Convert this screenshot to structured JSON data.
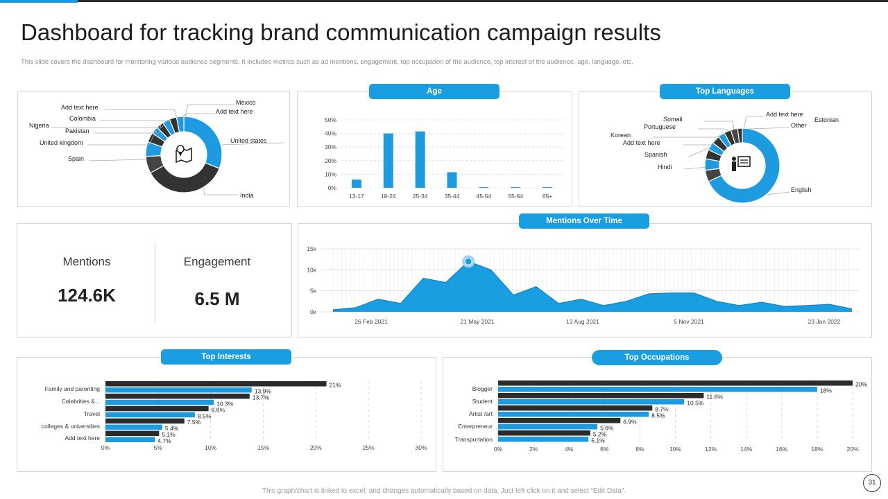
{
  "header": {
    "title": "Dashboard for tracking brand communication campaign results",
    "subtitle": "This slide covers the dashboard for monitoring various audience segments. It includes metrics such as ad mentions, engagement, top occupation of the audience, top interest of the audience, age, language, etc."
  },
  "colors": {
    "accent": "#1e9be0",
    "dark": "#333333",
    "panel_border": "#d4d4d4"
  },
  "location_chart": {
    "type": "pie",
    "icon": "map-pin-icon",
    "labels": [
      "Mexico",
      "Add text here",
      "Add text here",
      "Colombia",
      "Nigeria",
      "Pakistan",
      "United kingdom",
      "Spain",
      "United states",
      "India"
    ],
    "slices": [
      {
        "label": "United states",
        "value": 30
      },
      {
        "label": "India",
        "value": 35
      },
      {
        "label": "Spain",
        "value": 7
      },
      {
        "label": "United kingdom",
        "value": 6
      },
      {
        "label": "Pakistan",
        "value": 4
      },
      {
        "label": "Nigeria",
        "value": 3
      },
      {
        "label": "Colombia",
        "value": 3
      },
      {
        "label": "Add text here",
        "value": 3
      },
      {
        "label": "Add text here",
        "value": 3
      },
      {
        "label": "Mexico",
        "value": 3
      }
    ]
  },
  "age_chart": {
    "title": "Age",
    "type": "bar",
    "categories": [
      "13-17",
      "18-24",
      "25-34",
      "35-44",
      "45-54",
      "55-64",
      "65+"
    ],
    "values": [
      6,
      40,
      41.5,
      11.5,
      0.5,
      0.5,
      0.5
    ],
    "y_ticks": [
      "0%",
      "10%",
      "20%",
      "30%",
      "40%",
      "50%"
    ],
    "ylim": [
      0,
      50
    ]
  },
  "languages_chart": {
    "title": "Top Languages",
    "type": "pie",
    "icon": "presentation-icon",
    "labels": [
      "Add text here",
      "Estonian",
      "Other",
      "Somali",
      "Portuguese",
      "Korean",
      "Add text here",
      "Spanish",
      "Hindi",
      "English"
    ],
    "slices": [
      {
        "label": "English",
        "value": 68
      },
      {
        "label": "Hindi",
        "value": 5
      },
      {
        "label": "Spanish",
        "value": 5
      },
      {
        "label": "Add text here",
        "value": 4
      },
      {
        "label": "Korean",
        "value": 3.5
      },
      {
        "label": "Portuguese",
        "value": 3.5
      },
      {
        "label": "Somali",
        "value": 3
      },
      {
        "label": "Other",
        "value": 3
      },
      {
        "label": "Estonian",
        "value": 3
      },
      {
        "label": "Add text here",
        "value": 2
      }
    ]
  },
  "kpis": {
    "mentions_label": "Mentions",
    "mentions_value": "124.6K",
    "engagement_label": "Engagement",
    "engagement_value": "6.5 M"
  },
  "mentions_chart": {
    "title": "Mentions Over Time",
    "type": "area",
    "y_ticks": [
      "0k",
      "5k",
      "10k",
      "15k"
    ],
    "ylim": [
      0,
      15000
    ],
    "x_ticks": [
      "26 Feb 2021",
      "21 May 2021",
      "13 Aug 2021",
      "5 Nov 2021",
      "23 Jan 2022"
    ],
    "values": [
      500,
      1000,
      3000,
      2000,
      8000,
      7000,
      12000,
      10000,
      4000,
      6000,
      2000,
      3000,
      1500,
      2500,
      4300,
      4500,
      4500,
      2500,
      1500,
      2300,
      1300,
      1500,
      1800,
      700
    ],
    "highlight_index": 6
  },
  "interests_chart": {
    "title": "Top Interests",
    "type": "bar",
    "category_labels": [
      "Family and parenting",
      "Celebrities &...",
      "Travel",
      "colleges & universities",
      "Add text here"
    ],
    "bars": [
      {
        "value": 21,
        "label": "21%"
      },
      {
        "value": 13.9,
        "label": "13.9%"
      },
      {
        "value": 13.7,
        "label": "13.7%"
      },
      {
        "value": 10.3,
        "label": "10.3%"
      },
      {
        "value": 9.8,
        "label": "9.8%"
      },
      {
        "value": 8.5,
        "label": "8.5%"
      },
      {
        "value": 7.5,
        "label": "7.5%"
      },
      {
        "value": 5.4,
        "label": "5.4%"
      },
      {
        "value": 5.1,
        "label": "5.1%"
      },
      {
        "value": 4.7,
        "label": "4.7%"
      }
    ],
    "x_ticks": [
      "0%",
      "5%",
      "10%",
      "15%",
      "20%",
      "25%",
      "30%"
    ],
    "xlim": [
      0,
      30
    ]
  },
  "occupations_chart": {
    "title": "Top Occupations",
    "type": "bar",
    "category_labels": [
      "Blogger",
      "Student",
      "Artist /art",
      "Enterpreneur",
      "Transportation"
    ],
    "bars": [
      {
        "value": 20,
        "label": "20%"
      },
      {
        "value": 18,
        "label": "18%"
      },
      {
        "value": 11.6,
        "label": "11.6%"
      },
      {
        "value": 10.5,
        "label": "10.5%"
      },
      {
        "value": 8.7,
        "label": "8.7%"
      },
      {
        "value": 8.5,
        "label": "8.5%"
      },
      {
        "value": 6.9,
        "label": "6.9%"
      },
      {
        "value": 5.6,
        "label": "5.6%"
      },
      {
        "value": 5.2,
        "label": "5.2%"
      },
      {
        "value": 5.1,
        "label": "5.1%"
      }
    ],
    "x_ticks": [
      "0%",
      "2%",
      "4%",
      "6%",
      "8%",
      "10%",
      "12%",
      "14%",
      "16%",
      "18%",
      "20%"
    ],
    "xlim": [
      0,
      20
    ]
  },
  "footer": {
    "note": "This graph/chart is linked to excel, and changes automatically based on data. Just left click on it and select “Edit Data”.",
    "page_number": "31"
  }
}
